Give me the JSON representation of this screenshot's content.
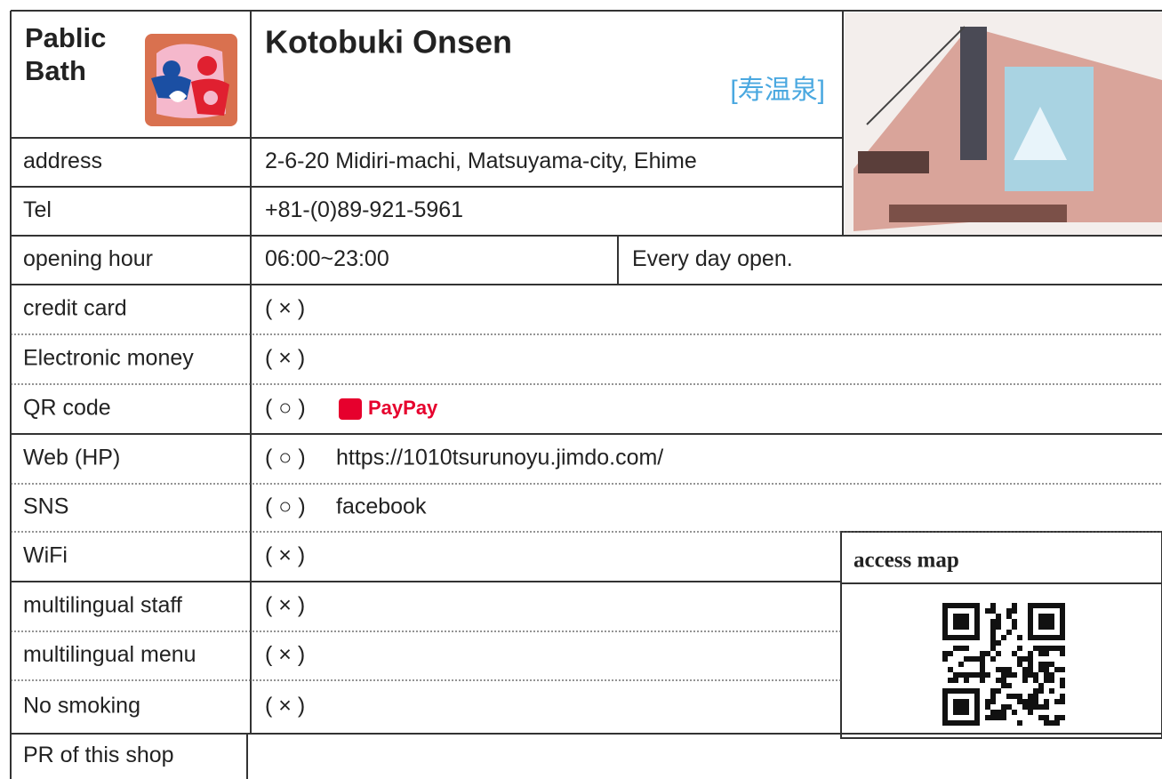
{
  "header": {
    "category": [
      "Pablic",
      "Bath"
    ],
    "name": "Kotobuki Onsen",
    "name_jp": "[寿温泉]"
  },
  "rows": [
    {
      "label": "address",
      "value": "2-6-20 Midiri-machi, Matsuyama-city, Ehime"
    },
    {
      "label": "Tel",
      "value": "+81-(0)89-921-5961"
    },
    {
      "label": "opening hour",
      "value": "06:00~23:00",
      "note": "Every day open."
    },
    {
      "label": "credit card",
      "mark": "( × )"
    },
    {
      "label": "Electronic money",
      "mark": "( × )"
    },
    {
      "label": "QR code",
      "mark": "( ○ )",
      "value": "PayPay"
    },
    {
      "label": "Web (HP)",
      "mark": "( ○ )",
      "value": "https://1010tsurunoyu.jimdo.com/"
    },
    {
      "label": "SNS",
      "mark": "( ○ )",
      "value": "facebook"
    },
    {
      "label": "WiFi",
      "mark": "( × )"
    },
    {
      "label": "multilingual staff",
      "mark": "( × )"
    },
    {
      "label": "multilingual menu",
      "mark": "( × )"
    },
    {
      "label": "No smoking",
      "mark": "( × )"
    },
    {
      "label": "PR of this shop"
    }
  ],
  "access_map": {
    "title": "access map"
  }
}
